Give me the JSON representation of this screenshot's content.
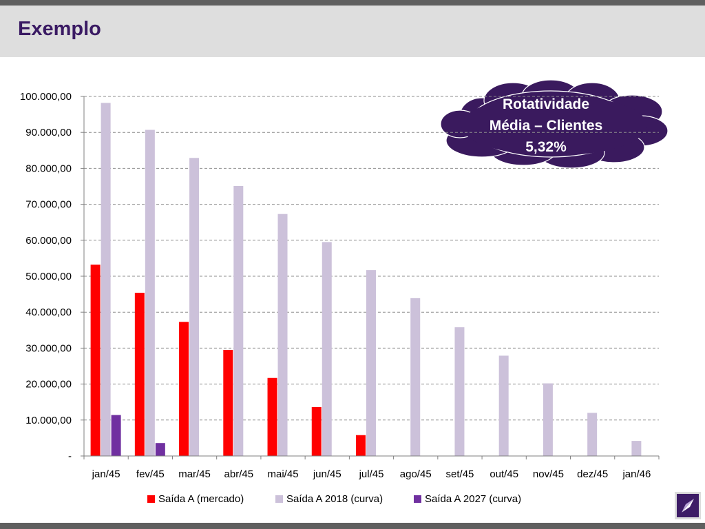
{
  "header": {
    "title": "Exemplo"
  },
  "colors": {
    "mercado": "#ff0000",
    "curva2018": "#ccc1da",
    "curva2027": "#7030a0",
    "title": "#3a1a63",
    "cloud": "#3a1a5e"
  },
  "callout": {
    "line1": "Rotatividade",
    "line2": "Média – Clientes",
    "line3": "5,32%"
  },
  "chart_data": {
    "type": "bar",
    "categories": [
      "jan/45",
      "fev/45",
      "mar/45",
      "abr/45",
      "mai/45",
      "jun/45",
      "jul/45",
      "ago/45",
      "set/45",
      "out/45",
      "nov/45",
      "dez/45",
      "jan/46"
    ],
    "series": [
      {
        "name": "Saída A (mercado)",
        "values": [
          53200,
          45400,
          37300,
          29500,
          21700,
          13600,
          5800,
          null,
          null,
          null,
          null,
          null,
          null
        ]
      },
      {
        "name": "Saída A 2018 (curva)",
        "values": [
          98200,
          90700,
          82900,
          75100,
          67300,
          59500,
          51700,
          43900,
          35800,
          27900,
          20200,
          12000,
          4200
        ]
      },
      {
        "name": "Saída A 2027 (curva)",
        "values": [
          11400,
          3600,
          null,
          null,
          null,
          null,
          null,
          null,
          null,
          null,
          null,
          null,
          null
        ]
      }
    ],
    "ylim": [
      0,
      100000
    ],
    "yticks": [
      0,
      10000,
      20000,
      30000,
      40000,
      50000,
      60000,
      70000,
      80000,
      90000,
      100000
    ],
    "ytick_labels": [
      "-",
      "10.000,00",
      "20.000,00",
      "30.000,00",
      "40.000,00",
      "50.000,00",
      "60.000,00",
      "70.000,00",
      "80.000,00",
      "90.000,00",
      "100.000,00"
    ],
    "grid": true,
    "legend_position": "bottom"
  }
}
